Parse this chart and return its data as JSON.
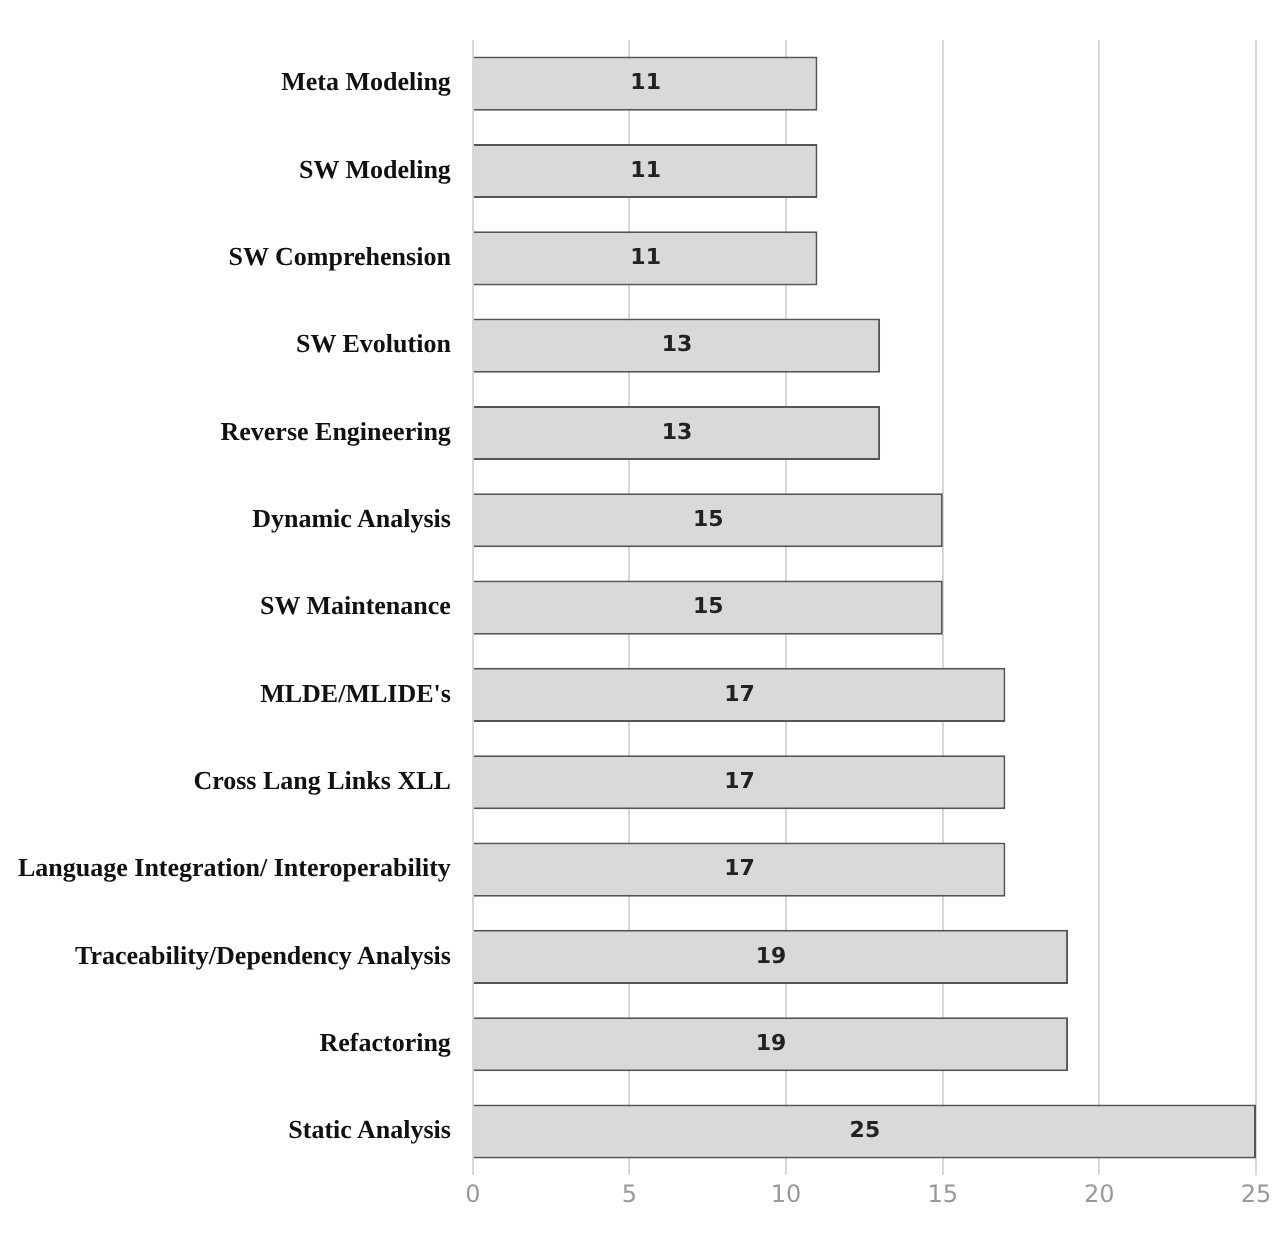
{
  "chart_data": {
    "type": "bar",
    "orientation": "horizontal",
    "categories": [
      "Meta Modeling",
      "SW Modeling",
      "SW Comprehension",
      "SW Evolution",
      "Reverse Engineering",
      "Dynamic Analysis",
      "SW Maintenance",
      "MLDE/MLIDE's",
      "Cross Lang Links XLL",
      "Language Integration/ Interoperability",
      "Traceability/Dependency Analysis",
      "Refactoring",
      "Static Analysis"
    ],
    "values": [
      11,
      11,
      11,
      13,
      13,
      15,
      15,
      17,
      17,
      17,
      19,
      19,
      25
    ],
    "color": "#d9d9d9",
    "xlim": [
      0,
      25
    ],
    "xticks": [
      0,
      5,
      10,
      15,
      20,
      25
    ],
    "grid": "x",
    "data_labels": true
  }
}
